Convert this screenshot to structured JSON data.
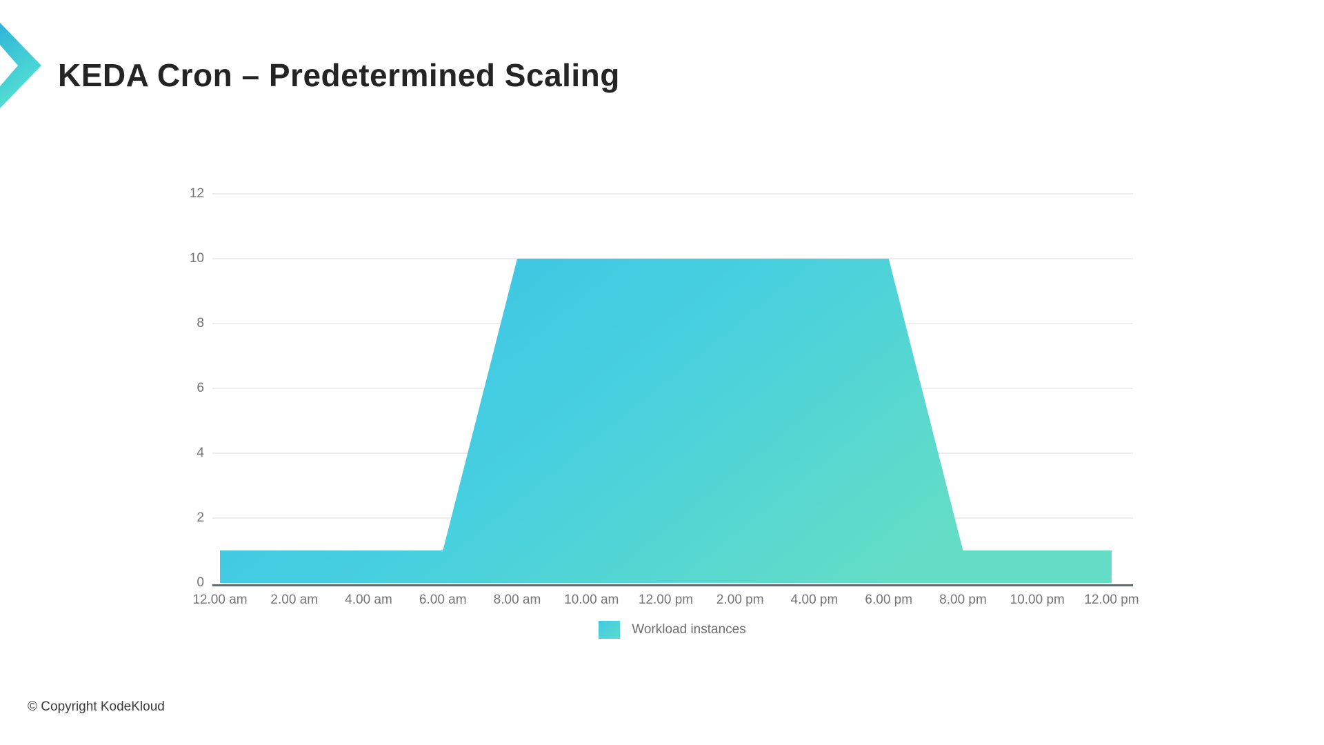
{
  "page": {
    "title": "KEDA Cron – Predetermined Scaling",
    "footer": "© Copyright KodeKloud"
  },
  "logo": {
    "name": "kodekloud-chevron",
    "gradient_start": "#2fb4d8",
    "gradient_end": "#55e2d2"
  },
  "chart_data": {
    "type": "area",
    "title": "",
    "categories": [
      "12.00 am",
      "2.00 am",
      "4.00 am",
      "6.00 am",
      "8.00 am",
      "10.00 am",
      "12.00 pm",
      "2.00 pm",
      "4.00 pm",
      "6.00 pm",
      "8.00 pm",
      "10.00 pm",
      "12.00 pm"
    ],
    "series": [
      {
        "name": "Workload instances",
        "values": [
          1,
          1,
          1,
          1,
          10,
          10,
          10,
          10,
          10,
          10,
          1,
          1,
          1
        ]
      }
    ],
    "xlabel": "",
    "ylabel": "",
    "ylim": [
      0,
      12
    ],
    "yticks": [
      0,
      2,
      4,
      6,
      8,
      10,
      12
    ],
    "grid": true,
    "legend_position": "bottom",
    "colors": {
      "area_gradient_start": "#38bfe7",
      "area_gradient_mid": "#46cfe0",
      "area_gradient_end": "#63ddc5",
      "gridline": "#e6e6e6",
      "axis_line": "#5d6d77",
      "tick_text": "#757575",
      "legend_text": "#6f6f6f"
    }
  }
}
